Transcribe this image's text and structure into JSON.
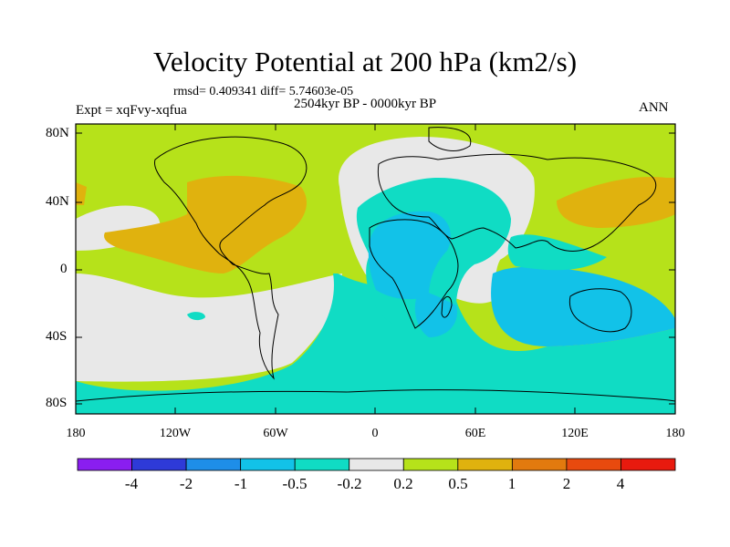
{
  "title": "Velocity Potential at 200 hPa (km2/s)",
  "stats_line": "rmsd= 0.409341 diff= 5.74603e-05",
  "period": "2504kyr BP - 0000kyr BP",
  "experiment": "Expt = xqFvy-xqfua",
  "season": "ANN",
  "lat_labels": [
    "80N",
    "40N",
    "0",
    "40S",
    "80S"
  ],
  "lon_labels": [
    "180",
    "120W",
    "60W",
    "0",
    "60E",
    "120E",
    "180"
  ],
  "colorbar": {
    "colors": [
      "#8a1ef0",
      "#2e3ad8",
      "#1e8ee8",
      "#12c2e8",
      "#10dcc4",
      "#e8e8e8",
      "#b6e21a",
      "#e0b20e",
      "#e27a0e",
      "#e84a0e",
      "#e81a0e"
    ],
    "labels": [
      "-4",
      "-2",
      "-1",
      "-0.5",
      "-0.2",
      "0.2",
      "0.5",
      "1",
      "2",
      "4"
    ]
  },
  "map_fill": {
    "positive_weak": "#b6e21a",
    "positive_mid": "#e0b20e",
    "neutral": "#e8e8e8",
    "negative_weak": "#10dcc4",
    "negative_mid": "#12c2e8"
  }
}
